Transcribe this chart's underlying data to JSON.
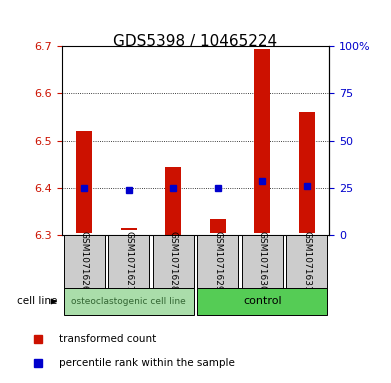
{
  "title": "GDS5398 / 10465224",
  "samples": [
    "GSM1071626",
    "GSM1071627",
    "GSM1071628",
    "GSM1071629",
    "GSM1071630",
    "GSM1071631"
  ],
  "bar_bottoms": [
    6.305,
    6.31,
    6.3,
    6.305,
    6.305,
    6.305
  ],
  "bar_tops": [
    6.52,
    6.315,
    6.445,
    6.335,
    6.695,
    6.56
  ],
  "percentile_values": [
    6.4,
    6.395,
    6.4,
    6.4,
    6.415,
    6.405
  ],
  "ylim": [
    6.3,
    6.7
  ],
  "yticks_left": [
    6.3,
    6.4,
    6.5,
    6.6,
    6.7
  ],
  "yticks_right": [
    0,
    25,
    50,
    75,
    100
  ],
  "bar_color": "#cc1100",
  "dot_color": "#0000cc",
  "grid_color": "#000000",
  "group1_label": "osteoclastogenic cell line",
  "group2_label": "control",
  "group1_indices": [
    0,
    1,
    2
  ],
  "group2_indices": [
    3,
    4,
    5
  ],
  "cell_line_label": "cell line",
  "legend_bar_label": "transformed count",
  "legend_dot_label": "percentile rank within the sample",
  "group1_color": "#aaddaa",
  "group2_color": "#55cc55",
  "sample_box_color": "#cccccc",
  "title_fontsize": 11,
  "tick_fontsize": 8,
  "label_fontsize": 8,
  "group_fontsize": 8
}
